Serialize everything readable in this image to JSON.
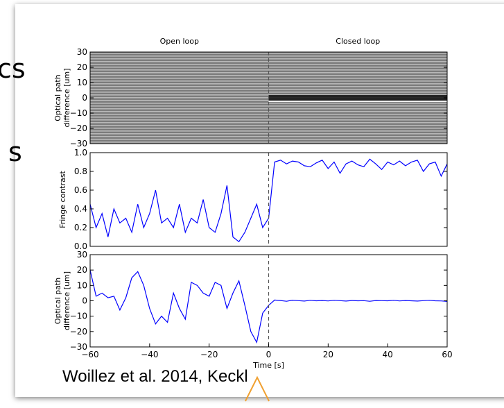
{
  "slide_fragments": [
    "cs",
    "s"
  ],
  "caption": "Woillez et al. 2014, Keckl",
  "chart_data": [
    {
      "type": "image",
      "annotations": [
        "Open loop",
        "Closed loop"
      ],
      "ylabel": [
        "Optical path",
        "difference [um]"
      ],
      "xlim": [
        -60,
        60
      ],
      "vline": 0,
      "ylim": [
        -30,
        30
      ],
      "yticks": [
        {
          "value": -30,
          "label": "−30"
        },
        {
          "value": -20,
          "label": "−20"
        },
        {
          "value": -10,
          "label": "−10"
        },
        0,
        10,
        20,
        30
      ]
    },
    {
      "type": "line",
      "ylabel": [
        "Fringe contrast"
      ],
      "xlim": [
        -60,
        60
      ],
      "vline": 0,
      "ylim": [
        0,
        1
      ],
      "yticks": [
        {
          "value": 0,
          "label": "0.0"
        },
        0.2,
        0.4,
        0.6,
        0.8,
        {
          "value": 1,
          "label": "1.0"
        }
      ],
      "x": [
        -60,
        -58,
        -56,
        -54,
        -52,
        -50,
        -48,
        -46,
        -44,
        -42,
        -40,
        -38,
        -36,
        -34,
        -32,
        -30,
        -28,
        -26,
        -24,
        -22,
        -20,
        -18,
        -16,
        -14,
        -12,
        -10,
        -8,
        -6,
        -4,
        -2,
        0,
        2,
        4,
        6,
        8,
        10,
        12,
        14,
        16,
        18,
        20,
        22,
        24,
        26,
        28,
        30,
        32,
        34,
        36,
        38,
        40,
        42,
        44,
        46,
        48,
        50,
        52,
        54,
        56,
        58,
        60
      ],
      "series": [
        {
          "color": "#0000ff",
          "values": [
            0.45,
            0.2,
            0.35,
            0.1,
            0.4,
            0.25,
            0.3,
            0.15,
            0.45,
            0.2,
            0.35,
            0.6,
            0.25,
            0.3,
            0.2,
            0.45,
            0.15,
            0.3,
            0.25,
            0.5,
            0.2,
            0.15,
            0.35,
            0.65,
            0.1,
            0.05,
            0.15,
            0.3,
            0.45,
            0.2,
            0.3,
            0.9,
            0.92,
            0.88,
            0.91,
            0.9,
            0.86,
            0.85,
            0.89,
            0.92,
            0.83,
            0.9,
            0.78,
            0.88,
            0.91,
            0.87,
            0.85,
            0.93,
            0.88,
            0.82,
            0.9,
            0.87,
            0.91,
            0.86,
            0.9,
            0.92,
            0.8,
            0.88,
            0.9,
            0.75,
            0.88
          ]
        }
      ]
    },
    {
      "type": "line",
      "ylabel": [
        "Optical path",
        "difference [um]"
      ],
      "xlabel": "Time [s]",
      "xlim": [
        -60,
        60
      ],
      "vline": 0,
      "xticks": [
        {
          "value": -60,
          "label": "−60"
        },
        {
          "value": -40,
          "label": "−40"
        },
        {
          "value": -20,
          "label": "−20"
        },
        0,
        20,
        40,
        60
      ],
      "ylim": [
        -30,
        30
      ],
      "yticks": [
        {
          "value": -30,
          "label": "−30"
        },
        {
          "value": -20,
          "label": "−20"
        },
        {
          "value": -10,
          "label": "−10"
        },
        0,
        10,
        20,
        30
      ],
      "x": [
        -60,
        -58,
        -56,
        -54,
        -52,
        -50,
        -48,
        -46,
        -44,
        -42,
        -40,
        -38,
        -36,
        -34,
        -32,
        -30,
        -28,
        -26,
        -24,
        -22,
        -20,
        -18,
        -16,
        -14,
        -12,
        -10,
        -8,
        -6,
        -4,
        -2,
        0,
        2,
        4,
        6,
        8,
        10,
        12,
        14,
        16,
        18,
        20,
        22,
        24,
        26,
        28,
        30,
        32,
        34,
        36,
        38,
        40,
        42,
        44,
        46,
        48,
        50,
        52,
        54,
        56,
        58,
        60
      ],
      "series": [
        {
          "color": "#0000ff",
          "values": [
            20,
            3,
            5,
            2,
            3,
            -6,
            2,
            15,
            19,
            10,
            -5,
            -15,
            -10,
            -14,
            5,
            -5,
            -12,
            12,
            10,
            5,
            3,
            12,
            10,
            -5,
            5,
            13,
            -3,
            -20,
            -27,
            -8,
            -3,
            0.5,
            0.2,
            -0.3,
            0.4,
            0.1,
            -0.2,
            0.3,
            0,
            0.2,
            -0.1,
            0.3,
            0.1,
            -0.2,
            0.2,
            0,
            0.1,
            -0.3,
            0.2,
            0.1,
            0,
            0.3,
            -0.1,
            0.2,
            0,
            -0.2,
            0.1,
            0.3,
            0,
            -0.1,
            -0.4
          ]
        }
      ]
    }
  ]
}
